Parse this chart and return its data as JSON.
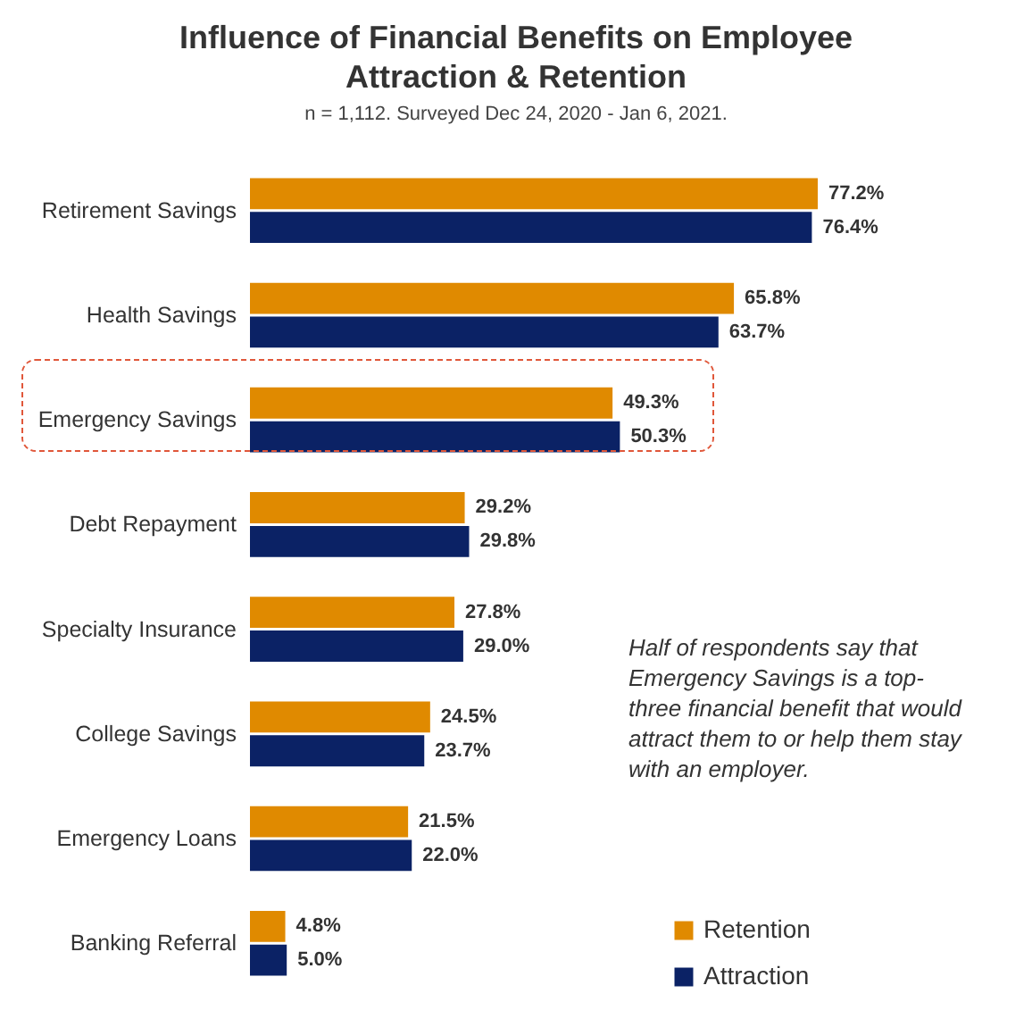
{
  "chart_data": {
    "type": "bar",
    "orientation": "horizontal",
    "title": "Influence of Financial Benefits on Employee Attraction & Retention",
    "subtitle": "n = 1,112. Surveyed Dec 24, 2020 - Jan 6, 2021.",
    "categories": [
      "Retirement Savings",
      "Health Savings",
      "Emergency Savings",
      "Debt Repayment",
      "Specialty Insurance",
      "College Savings",
      "Emergency Loans",
      "Banking Referral"
    ],
    "series": [
      {
        "name": "Retention",
        "color": "#e08a00",
        "values": [
          77.2,
          65.8,
          49.3,
          29.2,
          27.8,
          24.5,
          21.5,
          4.8
        ],
        "value_labels": [
          "77.2%",
          "65.8%",
          "49.3%",
          "29.2%",
          "27.8%",
          "24.5%",
          "21.5%",
          "4.8%"
        ]
      },
      {
        "name": "Attraction",
        "color": "#0b2265",
        "values": [
          76.4,
          63.7,
          50.3,
          29.8,
          29.0,
          23.7,
          22.0,
          5.0
        ],
        "value_labels": [
          "76.4%",
          "63.7%",
          "50.3%",
          "29.8%",
          "29.0%",
          "23.7%",
          "22.0%",
          "5.0%"
        ]
      }
    ],
    "annotations": [
      "Half of respondents say that Emergency Savings is a top-three financial benefit that would attract them to or help them stay with an employer."
    ],
    "legend": "bottom right",
    "grid": false
  }
}
